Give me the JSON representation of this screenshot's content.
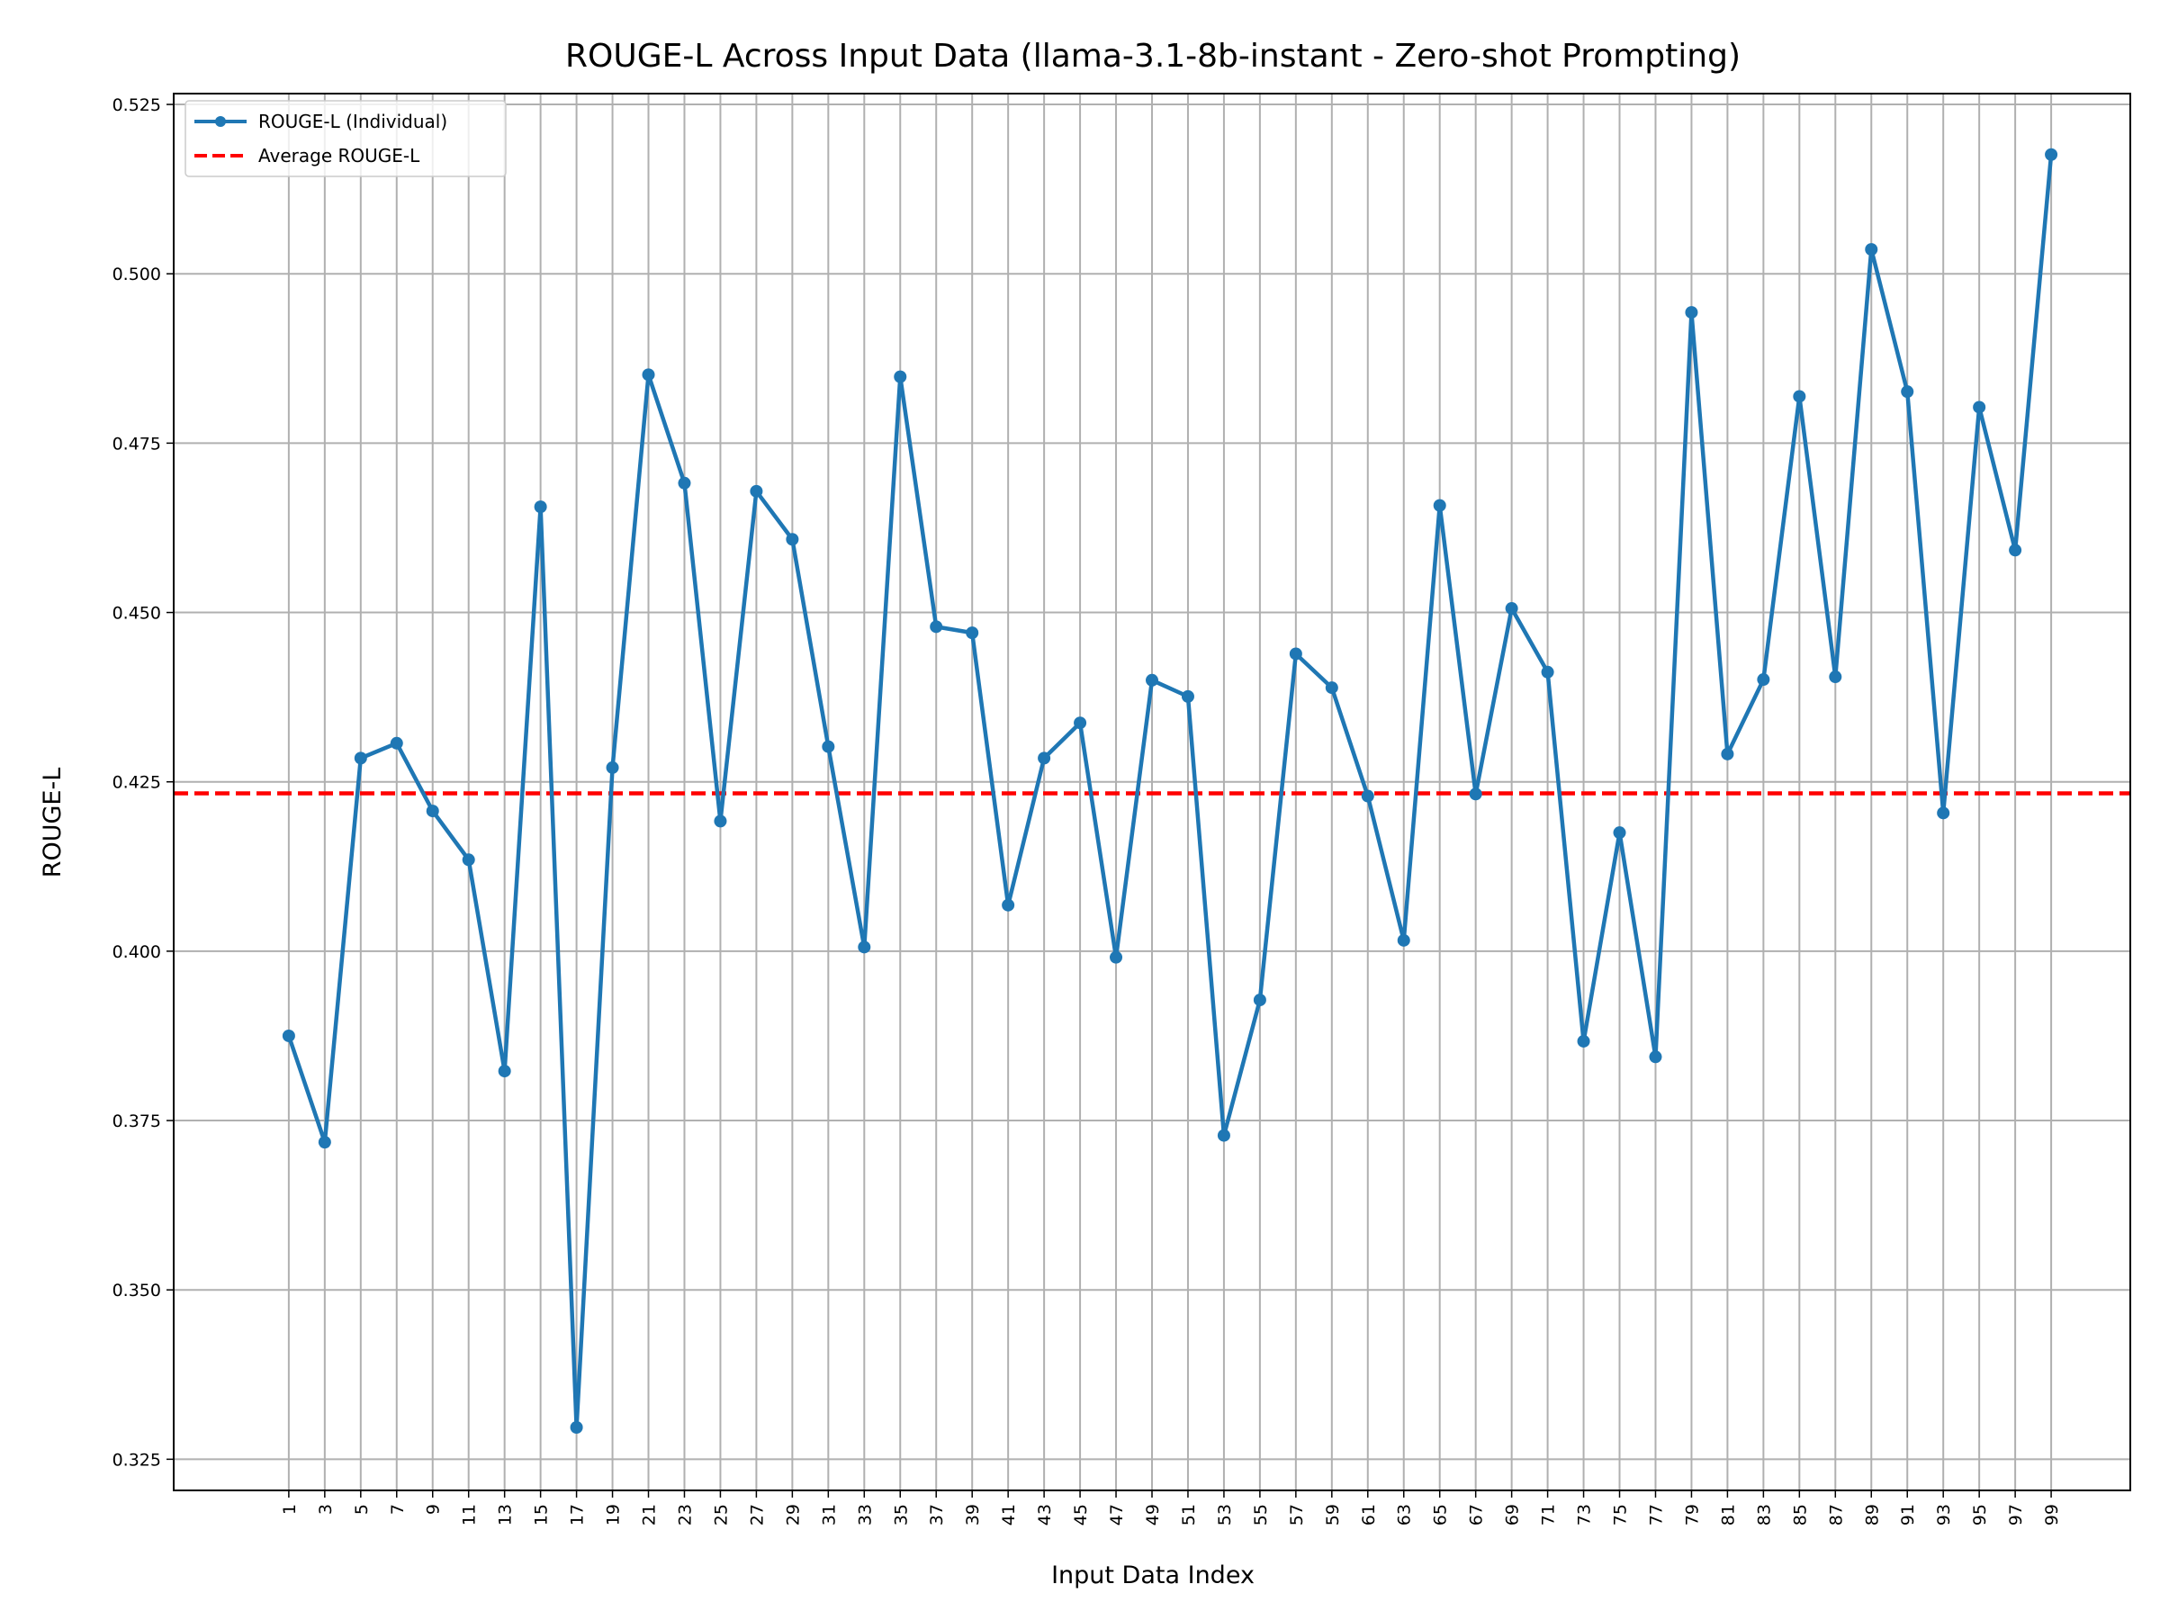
{
  "chart_data": {
    "type": "line",
    "title": "ROUGE-L Across Input Data (llama-3.1-8b-instant - Zero-shot Prompting)",
    "xlabel": "Input Data Index",
    "ylabel": "ROUGE-L",
    "x": [
      1,
      3,
      5,
      7,
      9,
      11,
      13,
      15,
      17,
      19,
      21,
      23,
      25,
      27,
      29,
      31,
      33,
      35,
      37,
      39,
      41,
      43,
      45,
      47,
      49,
      51,
      53,
      55,
      57,
      59,
      61,
      63,
      65,
      67,
      69,
      71,
      73,
      75,
      77,
      79,
      81,
      83,
      85,
      87,
      89,
      91,
      93,
      95,
      97,
      99
    ],
    "xticks": [
      "1",
      "3",
      "5",
      "7",
      "9",
      "11",
      "13",
      "15",
      "17",
      "19",
      "21",
      "23",
      "25",
      "27",
      "29",
      "31",
      "33",
      "35",
      "37",
      "39",
      "41",
      "43",
      "45",
      "47",
      "49",
      "51",
      "53",
      "55",
      "57",
      "59",
      "61",
      "63",
      "65",
      "67",
      "69",
      "71",
      "73",
      "75",
      "77",
      "79",
      "81",
      "83",
      "85",
      "87",
      "89",
      "91",
      "93",
      "95",
      "97",
      "99"
    ],
    "yticks": [
      "0.325",
      "0.350",
      "0.375",
      "0.400",
      "0.425",
      "0.450",
      "0.475",
      "0.500",
      "0.525"
    ],
    "xlim": [
      -5.4,
      103.4
    ],
    "ylim": [
      0.3204,
      0.5266
    ],
    "grid": true,
    "legend_position": "top-left",
    "series": [
      {
        "name": "ROUGE-L (Individual)",
        "color": "#1f77b4",
        "marker": "circle",
        "values": [
          0.3875,
          0.3718,
          0.4285,
          0.4307,
          0.4207,
          0.4135,
          0.3823,
          0.4656,
          0.3297,
          0.4271,
          0.4851,
          0.4691,
          0.4192,
          0.4679,
          0.4608,
          0.4302,
          0.4006,
          0.4848,
          0.4479,
          0.447,
          0.4068,
          0.4285,
          0.4337,
          0.3991,
          0.44,
          0.4376,
          0.3728,
          0.3928,
          0.4439,
          0.4389,
          0.4229,
          0.4016,
          0.4658,
          0.4232,
          0.4506,
          0.4412,
          0.3867,
          0.4175,
          0.3844,
          0.4943,
          0.4291,
          0.4401,
          0.4819,
          0.4405,
          0.5036,
          0.4826,
          0.4204,
          0.4803,
          0.4592,
          0.5176
        ]
      },
      {
        "name": "Average ROUGE-L",
        "color": "#ff0000",
        "style": "dashed",
        "value": 0.4233
      }
    ]
  }
}
